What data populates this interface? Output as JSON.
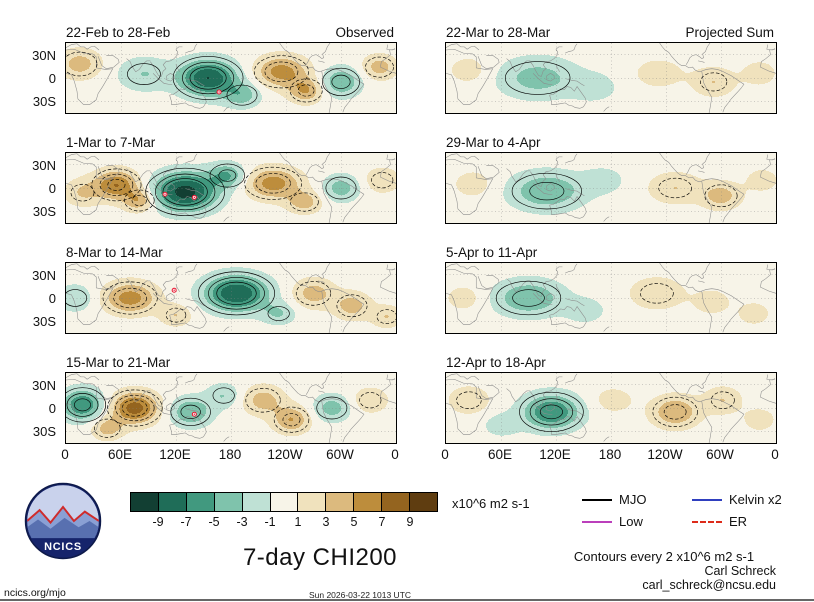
{
  "figure": {
    "title": "7-day CHI200",
    "contours_note": "Contours every 2 x10^6 m2 s-1",
    "credit_name": "Carl Schreck",
    "credit_email": "carl_schreck@ncsu.edu",
    "site": "ncics.org/mjo",
    "timestamp": "Sun 2026-03-22 1013 UTC",
    "logo_text": "NCICS"
  },
  "axes": {
    "lat_ticks": [
      "30N",
      "0",
      "30S"
    ],
    "lon_ticks": [
      "0",
      "60E",
      "120E",
      "180",
      "120W",
      "60W",
      "0"
    ]
  },
  "colorbar": {
    "unit": "x10^6 m2 s-1",
    "tick_labels": [
      "-9",
      "-7",
      "-5",
      "-3",
      "-1",
      "1",
      "3",
      "5",
      "7",
      "9"
    ],
    "levels": [
      -9,
      -7,
      -5,
      -3,
      -1,
      1,
      3,
      5,
      7,
      9
    ],
    "colors": [
      "#123f33",
      "#1f6d58",
      "#41997f",
      "#7fc3ac",
      "#bfe1d5",
      "#f7f4e8",
      "#f0e2bd",
      "#dcba7e",
      "#bd8d3c",
      "#94641f",
      "#5f3d10"
    ]
  },
  "legend": [
    {
      "label": "MJO",
      "color": "#000000",
      "dash": "solid"
    },
    {
      "label": "Low",
      "color": "#bb3fbb",
      "dash": "solid"
    },
    {
      "label": "Kelvin x2",
      "color": "#2f3fbf",
      "dash": "solid"
    },
    {
      "label": "ER",
      "color": "#dd2b1a",
      "dash": "dashed"
    }
  ],
  "chart_data": {
    "type": "heatmap",
    "units": "x10^6 m2 s-1",
    "lon_range": [
      0,
      360
    ],
    "lat_range": [
      -45,
      45
    ],
    "contour_interval": 2,
    "panels": [
      {
        "title": "22-Feb to 28-Feb",
        "corner_label": "Observed",
        "column": "observed",
        "anomalies": [
          {
            "lon": 15,
            "lat": 18,
            "amp": 4,
            "slon": 16,
            "slat": 13
          },
          {
            "lon": 85,
            "lat": 5,
            "amp": -3,
            "slon": 20,
            "slat": 15
          },
          {
            "lon": 155,
            "lat": 0,
            "amp": -9,
            "slon": 22,
            "slat": 16
          },
          {
            "lon": 192,
            "lat": -22,
            "amp": -4,
            "slon": 14,
            "slat": 11
          },
          {
            "lon": 235,
            "lat": 8,
            "amp": 6,
            "slon": 20,
            "slat": 14
          },
          {
            "lon": 262,
            "lat": -16,
            "amp": 5,
            "slon": 13,
            "slat": 11
          },
          {
            "lon": 300,
            "lat": -5,
            "amp": -5,
            "slon": 15,
            "slat": 13
          },
          {
            "lon": 342,
            "lat": 14,
            "amp": 4,
            "slon": 13,
            "slat": 11
          }
        ],
        "markers": [
          {
            "lon": 167,
            "lat": -18
          }
        ]
      },
      {
        "title": "1-Mar to 7-Mar",
        "corner_label": "",
        "column": "observed",
        "anomalies": [
          {
            "lon": 18,
            "lat": -6,
            "amp": 3,
            "slon": 14,
            "slat": 12
          },
          {
            "lon": 55,
            "lat": 4,
            "amp": 7,
            "slon": 17,
            "slat": 13
          },
          {
            "lon": 80,
            "lat": -16,
            "amp": 5,
            "slon": 12,
            "slat": 10
          },
          {
            "lon": 130,
            "lat": -5,
            "amp": -10,
            "slon": 24,
            "slat": 17
          },
          {
            "lon": 176,
            "lat": 16,
            "amp": -5,
            "slon": 14,
            "slat": 11
          },
          {
            "lon": 226,
            "lat": 6,
            "amp": 6,
            "slon": 21,
            "slat": 14
          },
          {
            "lon": 260,
            "lat": -18,
            "amp": 4,
            "slon": 13,
            "slat": 10
          },
          {
            "lon": 300,
            "lat": 0,
            "amp": -4,
            "slon": 14,
            "slat": 12
          },
          {
            "lon": 345,
            "lat": 10,
            "amp": 3,
            "slon": 13,
            "slat": 11
          }
        ],
        "markers": [
          {
            "lon": 108,
            "lat": -8
          },
          {
            "lon": 140,
            "lat": -12
          }
        ]
      },
      {
        "title": "8-Mar to 14-Mar",
        "corner_label": "",
        "column": "observed",
        "anomalies": [
          {
            "lon": 10,
            "lat": 0,
            "amp": -3,
            "slon": 14,
            "slat": 12
          },
          {
            "lon": 70,
            "lat": 0,
            "amp": 6,
            "slon": 20,
            "slat": 14
          },
          {
            "lon": 120,
            "lat": -22,
            "amp": 3,
            "slon": 12,
            "slat": 10
          },
          {
            "lon": 186,
            "lat": 6,
            "amp": -9,
            "slon": 24,
            "slat": 16
          },
          {
            "lon": 232,
            "lat": -20,
            "amp": -3,
            "slon": 13,
            "slat": 10
          },
          {
            "lon": 270,
            "lat": 6,
            "amp": 4,
            "slon": 16,
            "slat": 13
          },
          {
            "lon": 312,
            "lat": -10,
            "amp": 4,
            "slon": 14,
            "slat": 12
          },
          {
            "lon": 350,
            "lat": -24,
            "amp": 3,
            "slon": 12,
            "slat": 10
          }
        ],
        "markers": [
          {
            "lon": 118,
            "lat": 10
          }
        ]
      },
      {
        "title": "15-Mar to 21-Mar",
        "corner_label": "",
        "column": "observed",
        "anomalies": [
          {
            "lon": 18,
            "lat": 4,
            "amp": -7,
            "slon": 16,
            "slat": 14
          },
          {
            "lon": 75,
            "lat": 0,
            "amp": 8,
            "slon": 18,
            "slat": 14
          },
          {
            "lon": 45,
            "lat": -26,
            "amp": 4,
            "slon": 12,
            "slat": 10
          },
          {
            "lon": 136,
            "lat": -5,
            "amp": -5,
            "slon": 16,
            "slat": 13
          },
          {
            "lon": 172,
            "lat": 16,
            "amp": -3,
            "slon": 13,
            "slat": 11
          },
          {
            "lon": 215,
            "lat": 10,
            "amp": 4,
            "slon": 16,
            "slat": 13
          },
          {
            "lon": 246,
            "lat": -15,
            "amp": 5,
            "slon": 14,
            "slat": 12
          },
          {
            "lon": 290,
            "lat": 0,
            "amp": -4,
            "slon": 14,
            "slat": 12
          },
          {
            "lon": 332,
            "lat": 10,
            "amp": 3,
            "slon": 13,
            "slat": 11
          }
        ],
        "markers": [
          {
            "lon": 140,
            "lat": -8
          }
        ]
      },
      {
        "title": "22-Mar to 28-Mar",
        "corner_label": "Projected Sum",
        "column": "projected",
        "anomalies": [
          {
            "lon": 25,
            "lat": 10,
            "amp": 2,
            "slon": 16,
            "slat": 13
          },
          {
            "lon": 100,
            "lat": 0,
            "amp": -4,
            "slon": 30,
            "slat": 18
          },
          {
            "lon": 162,
            "lat": -12,
            "amp": -2,
            "slon": 18,
            "slat": 13
          },
          {
            "lon": 232,
            "lat": 6,
            "amp": 2,
            "slon": 20,
            "slat": 14
          },
          {
            "lon": 292,
            "lat": -5,
            "amp": 3,
            "slon": 16,
            "slat": 13
          },
          {
            "lon": 342,
            "lat": 6,
            "amp": 2,
            "slon": 14,
            "slat": 12
          }
        ],
        "markers": []
      },
      {
        "title": "29-Mar to 4-Apr",
        "corner_label": "",
        "column": "projected",
        "anomalies": [
          {
            "lon": 30,
            "lat": 5,
            "amp": 2,
            "slon": 16,
            "slat": 13
          },
          {
            "lon": 110,
            "lat": -4,
            "amp": -5,
            "slon": 28,
            "slat": 17
          },
          {
            "lon": 172,
            "lat": 10,
            "amp": -2,
            "slon": 16,
            "slat": 12
          },
          {
            "lon": 250,
            "lat": 0,
            "amp": 3,
            "slon": 20,
            "slat": 14
          },
          {
            "lon": 300,
            "lat": -10,
            "amp": 4,
            "slon": 15,
            "slat": 12
          },
          {
            "lon": 345,
            "lat": 10,
            "amp": 2,
            "slon": 13,
            "slat": 11
          }
        ],
        "markers": []
      },
      {
        "title": "5-Apr to 11-Apr",
        "corner_label": "",
        "column": "projected",
        "anomalies": [
          {
            "lon": 20,
            "lat": 0,
            "amp": 2,
            "slon": 15,
            "slat": 12
          },
          {
            "lon": 90,
            "lat": 0,
            "amp": -5,
            "slon": 26,
            "slat": 16
          },
          {
            "lon": 152,
            "lat": -16,
            "amp": -2,
            "slon": 16,
            "slat": 12
          },
          {
            "lon": 230,
            "lat": 6,
            "amp": 3,
            "slon": 20,
            "slat": 14
          },
          {
            "lon": 290,
            "lat": -5,
            "amp": 2,
            "slon": 15,
            "slat": 12
          },
          {
            "lon": 336,
            "lat": -20,
            "amp": 2,
            "slon": 13,
            "slat": 11
          }
        ],
        "markers": []
      },
      {
        "title": "12-Apr to 18-Apr",
        "corner_label": "",
        "column": "projected",
        "anomalies": [
          {
            "lon": 25,
            "lat": 10,
            "amp": 3,
            "slon": 15,
            "slat": 12
          },
          {
            "lon": 115,
            "lat": -5,
            "amp": -7,
            "slon": 22,
            "slat": 16
          },
          {
            "lon": 60,
            "lat": -22,
            "amp": -2,
            "slon": 14,
            "slat": 11
          },
          {
            "lon": 182,
            "lat": 10,
            "amp": 2,
            "slon": 16,
            "slat": 12
          },
          {
            "lon": 250,
            "lat": -5,
            "amp": 5,
            "slon": 18,
            "slat": 14
          },
          {
            "lon": 302,
            "lat": 10,
            "amp": 3,
            "slon": 14,
            "slat": 12
          },
          {
            "lon": 342,
            "lat": -15,
            "amp": 2,
            "slon": 13,
            "slat": 11
          }
        ],
        "markers": []
      }
    ]
  }
}
